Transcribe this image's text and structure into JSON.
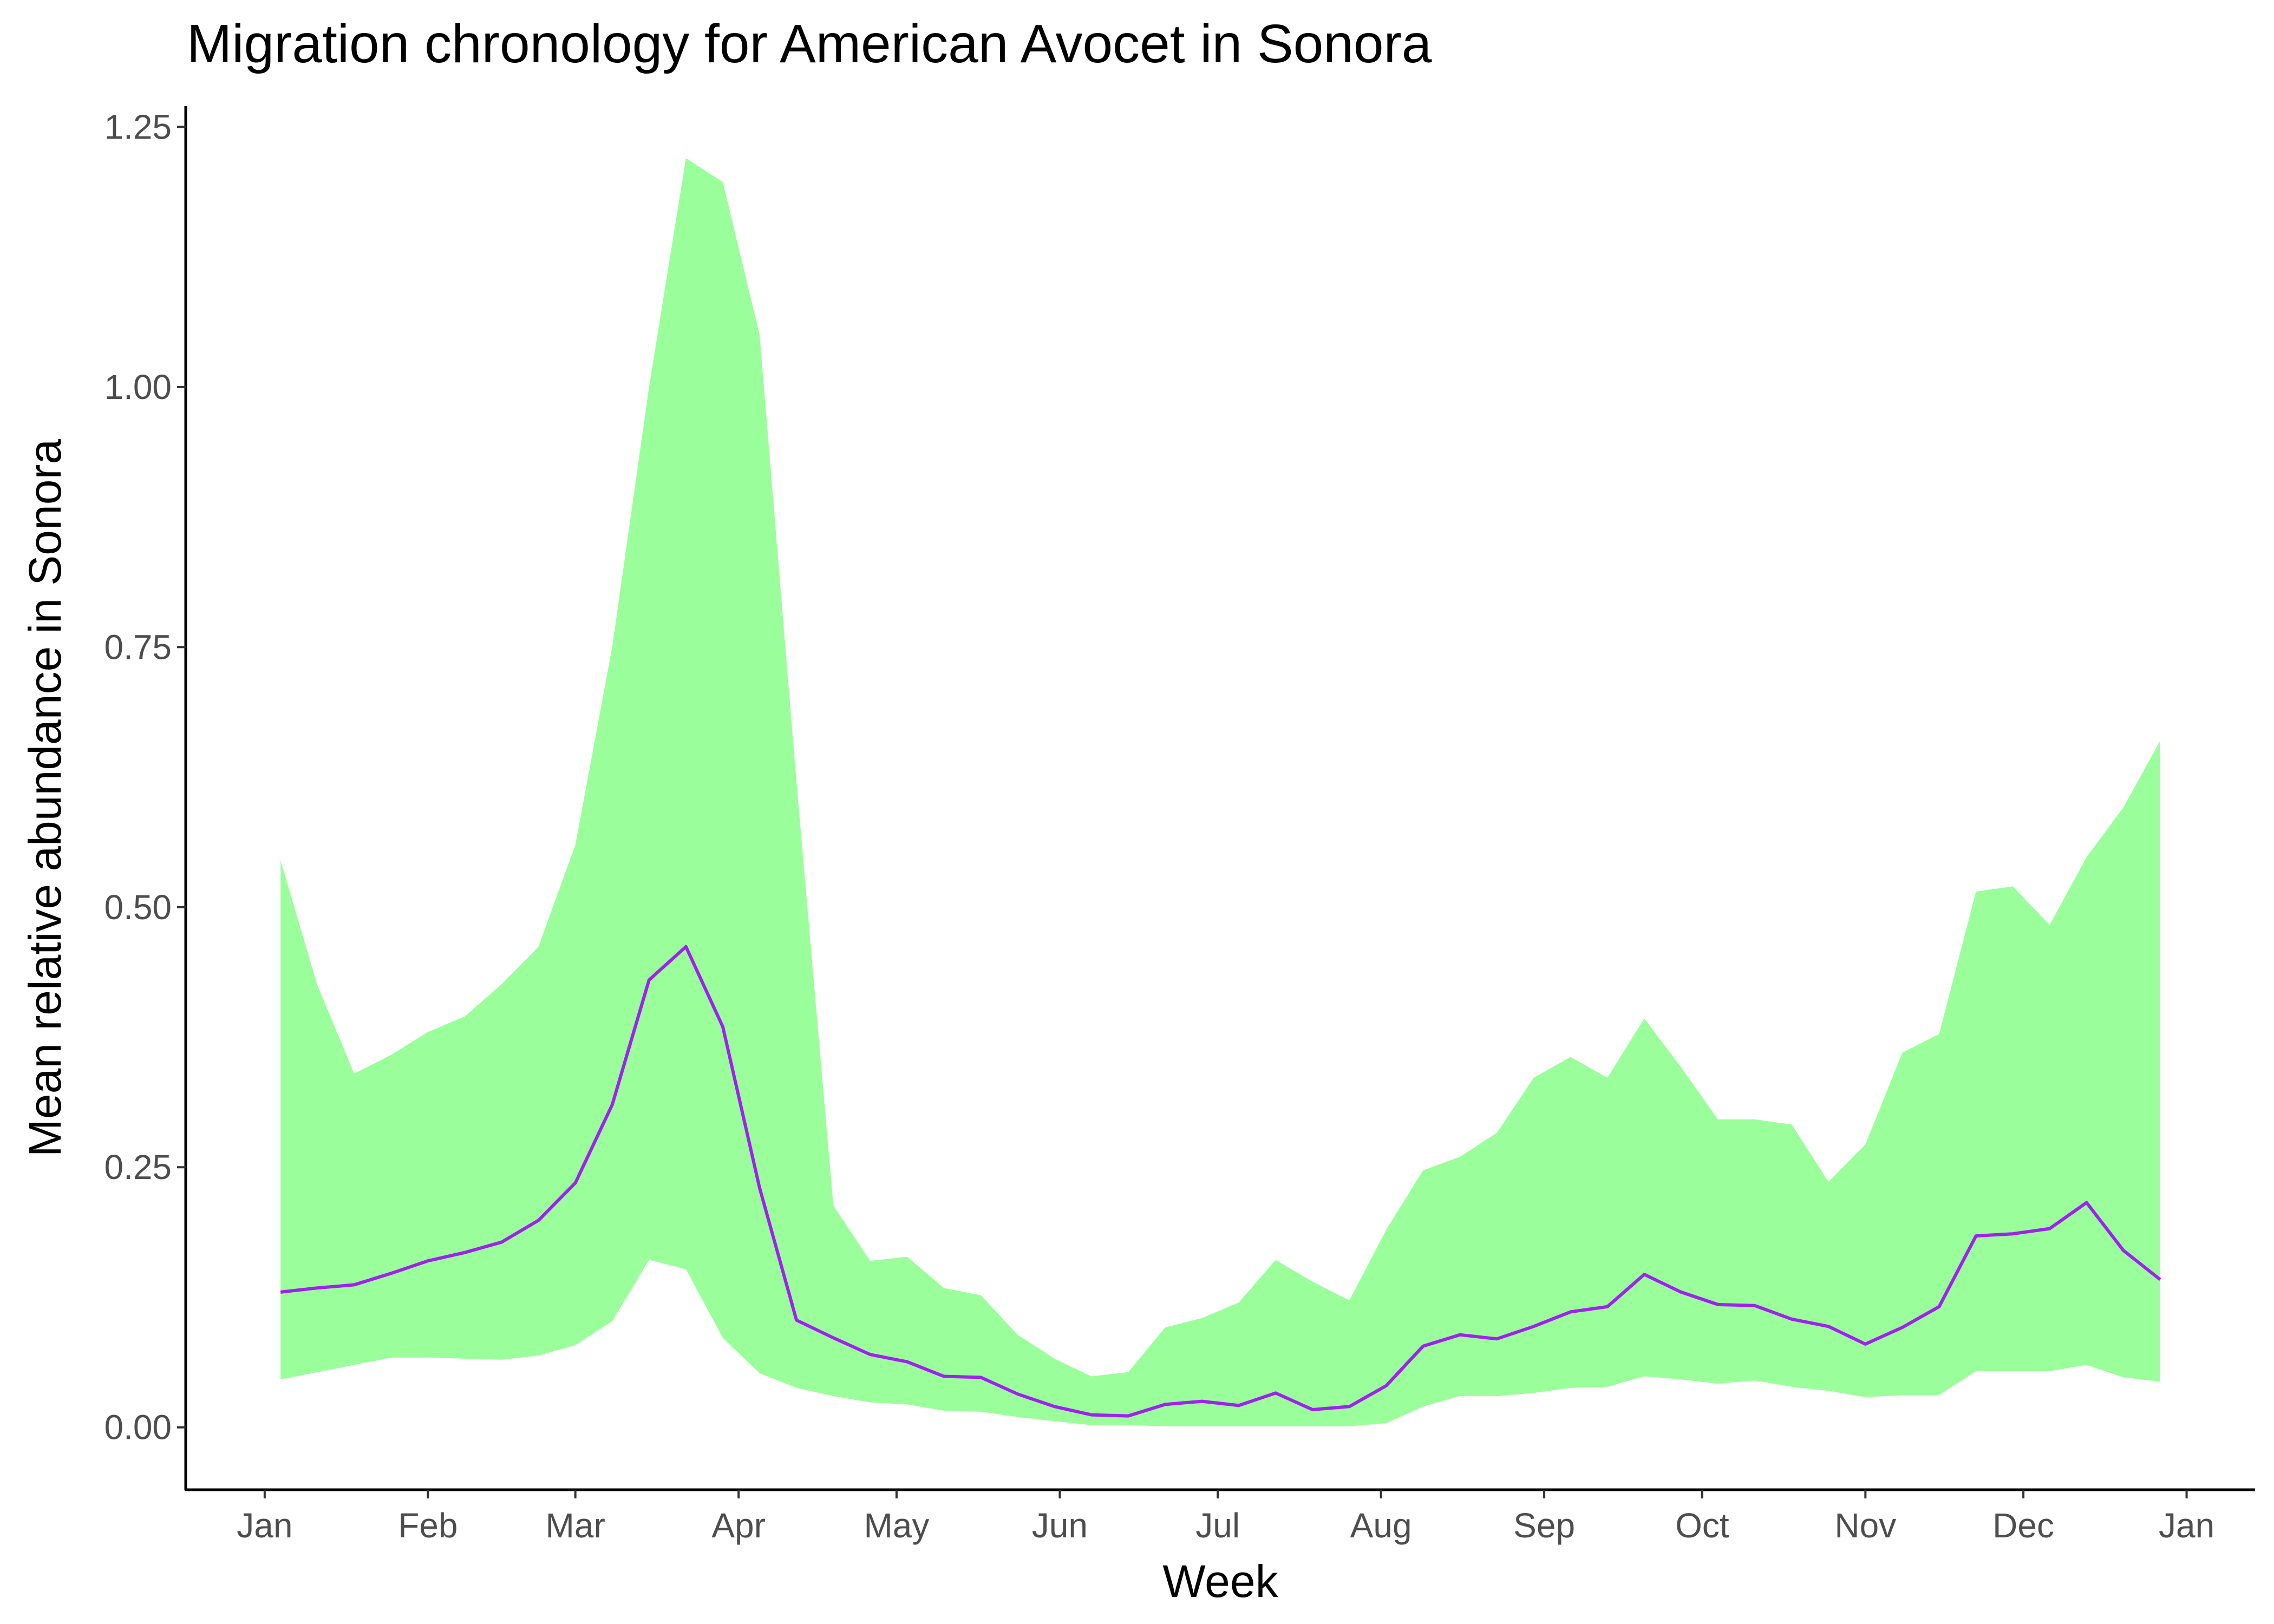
{
  "chart_data": {
    "type": "area",
    "title": "Migration chronology for American Avocet in Sonora",
    "xlabel": "Week",
    "ylabel": "Mean relative abundance in Sonora",
    "x_ticks": [
      {
        "label": "Jan",
        "x": "2021-01-01"
      },
      {
        "label": "Feb",
        "x": "2021-02-01"
      },
      {
        "label": "Mar",
        "x": "2021-03-01"
      },
      {
        "label": "Apr",
        "x": "2021-04-01"
      },
      {
        "label": "May",
        "x": "2021-05-01"
      },
      {
        "label": "Jun",
        "x": "2021-06-01"
      },
      {
        "label": "Jul",
        "x": "2021-07-01"
      },
      {
        "label": "Aug",
        "x": "2021-08-01"
      },
      {
        "label": "Sep",
        "x": "2021-09-01"
      },
      {
        "label": "Oct",
        "x": "2021-10-01"
      },
      {
        "label": "Nov",
        "x": "2021-11-01"
      },
      {
        "label": "Dec",
        "x": "2021-12-01"
      },
      {
        "label": "Jan",
        "x": "2022-01-01"
      }
    ],
    "y_ticks": [
      "0.00",
      "0.25",
      "0.50",
      "0.75",
      "1.00",
      "1.25"
    ],
    "ylim": [
      -0.06,
      1.27
    ],
    "xlim": [
      "2020-12-17",
      "2022-01-14"
    ],
    "grid": false,
    "legend": "none",
    "colors": {
      "band": "#9aff9a",
      "line": "#a020f0"
    },
    "series": [
      {
        "x": [
          "2021-01-04",
          "2021-01-11",
          "2021-01-18",
          "2021-01-25",
          "2021-02-01",
          "2021-02-08",
          "2021-02-15",
          "2021-02-22",
          "2021-03-01",
          "2021-03-08",
          "2021-03-15",
          "2021-03-22",
          "2021-03-29",
          "2021-04-05",
          "2021-04-12",
          "2021-04-19",
          "2021-04-26",
          "2021-05-03",
          "2021-05-10",
          "2021-05-17",
          "2021-05-24",
          "2021-05-31",
          "2021-06-07",
          "2021-06-14",
          "2021-06-21",
          "2021-06-28",
          "2021-07-05",
          "2021-07-12",
          "2021-07-19",
          "2021-07-26",
          "2021-08-02",
          "2021-08-09",
          "2021-08-16",
          "2021-08-23",
          "2021-08-30",
          "2021-09-06",
          "2021-09-13",
          "2021-09-20",
          "2021-09-27",
          "2021-10-04",
          "2021-10-11",
          "2021-10-18",
          "2021-10-25",
          "2021-11-01",
          "2021-11-08",
          "2021-11-15",
          "2021-11-22",
          "2021-11-29",
          "2021-12-06",
          "2021-12-13",
          "2021-12-20",
          "2021-12-27"
        ],
        "mean": [
          0.13,
          0.134,
          0.137,
          0.148,
          0.16,
          0.168,
          0.178,
          0.199,
          0.235,
          0.31,
          0.43,
          0.462,
          0.385,
          0.23,
          0.103,
          0.086,
          0.07,
          0.063,
          0.049,
          0.048,
          0.032,
          0.02,
          0.012,
          0.011,
          0.022,
          0.025,
          0.021,
          0.033,
          0.017,
          0.02,
          0.04,
          0.078,
          0.089,
          0.085,
          0.097,
          0.111,
          0.116,
          0.147,
          0.13,
          0.118,
          0.117,
          0.104,
          0.097,
          0.08,
          0.096,
          0.116,
          0.184,
          0.186,
          0.191,
          0.216,
          0.17,
          0.142
        ],
        "lower": [
          0.046,
          0.053,
          0.06,
          0.067,
          0.067,
          0.066,
          0.065,
          0.069,
          0.079,
          0.102,
          0.161,
          0.152,
          0.086,
          0.052,
          0.038,
          0.03,
          0.024,
          0.022,
          0.016,
          0.015,
          0.01,
          0.006,
          0.002,
          0.002,
          0.001,
          0.001,
          0.001,
          0.001,
          0.001,
          0.001,
          0.004,
          0.02,
          0.03,
          0.03,
          0.033,
          0.038,
          0.039,
          0.049,
          0.046,
          0.042,
          0.045,
          0.039,
          0.035,
          0.029,
          0.031,
          0.031,
          0.054,
          0.054,
          0.054,
          0.06,
          0.048,
          0.044
        ],
        "upper": [
          0.545,
          0.425,
          0.34,
          0.358,
          0.38,
          0.395,
          0.426,
          0.462,
          0.56,
          0.75,
          1.0,
          1.22,
          1.197,
          1.05,
          0.62,
          0.213,
          0.16,
          0.164,
          0.134,
          0.127,
          0.089,
          0.066,
          0.049,
          0.053,
          0.096,
          0.105,
          0.12,
          0.161,
          0.14,
          0.122,
          0.19,
          0.247,
          0.26,
          0.283,
          0.336,
          0.356,
          0.336,
          0.393,
          0.346,
          0.296,
          0.296,
          0.291,
          0.236,
          0.272,
          0.36,
          0.378,
          0.515,
          0.52,
          0.483,
          0.548,
          0.596,
          0.66
        ]
      }
    ]
  }
}
